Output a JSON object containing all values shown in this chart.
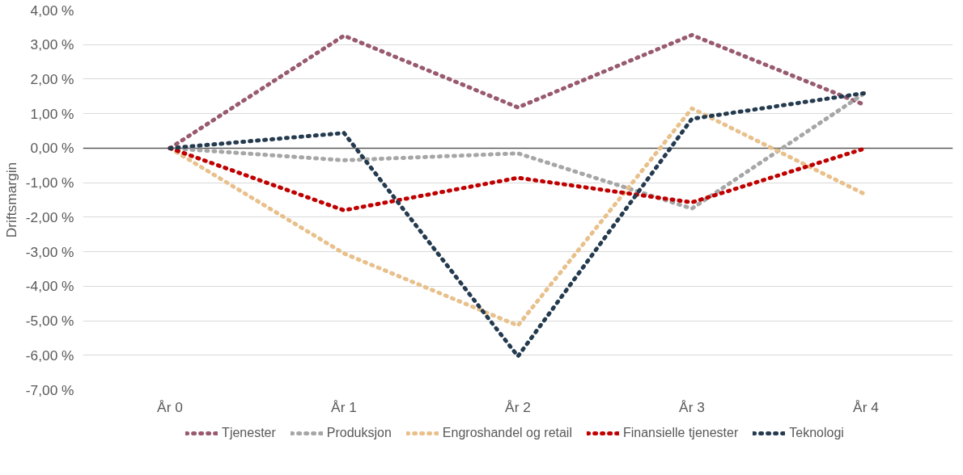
{
  "chart_data": {
    "type": "line",
    "ylabel": "Driftsmargin",
    "categories": [
      "År 0",
      "År 1",
      "År 2",
      "År 3",
      "År 4"
    ],
    "series": [
      {
        "name": "Tjenester",
        "color": "#985a6e",
        "values": [
          0,
          3.26,
          1.18,
          3.28,
          1.24
        ]
      },
      {
        "name": "Produksjon",
        "color": "#a6a6a6",
        "values": [
          0,
          -0.35,
          -0.15,
          -1.75,
          1.62
        ]
      },
      {
        "name": "Engroshandel og retail",
        "color": "#e8c08b",
        "values": [
          0,
          -3.05,
          -5.14,
          1.15,
          -1.35
        ]
      },
      {
        "name": "Finansielle tjenester",
        "color": "#c00000",
        "values": [
          0,
          -1.8,
          -0.86,
          -1.57,
          0
        ]
      },
      {
        "name": "Teknologi",
        "color": "#243a4f",
        "values": [
          0,
          0.44,
          -6.03,
          0.85,
          1.6
        ]
      }
    ],
    "ylim": [
      -7,
      4
    ],
    "yticks": [
      {
        "value": -7,
        "label": "-7,00 %"
      },
      {
        "value": -6,
        "label": "-6,00 %"
      },
      {
        "value": -5,
        "label": "-5,00 %"
      },
      {
        "value": -4,
        "label": "-4,00 %"
      },
      {
        "value": -3,
        "label": "-3,00 %"
      },
      {
        "value": -2,
        "label": "-2,00 %"
      },
      {
        "value": -1,
        "label": "-1,00 %"
      },
      {
        "value": 0,
        "label": "0,00 %"
      },
      {
        "value": 1,
        "label": "1,00 %"
      },
      {
        "value": 2,
        "label": "2,00 %"
      },
      {
        "value": 3,
        "label": "3,00 %"
      },
      {
        "value": 4,
        "label": "4,00 %"
      }
    ],
    "ref_lines": [
      {
        "axis": "y",
        "value": 0,
        "color": "#595959"
      }
    ],
    "grid": "y",
    "legend": "bottom",
    "line_style": "dotted",
    "marker": "none"
  }
}
